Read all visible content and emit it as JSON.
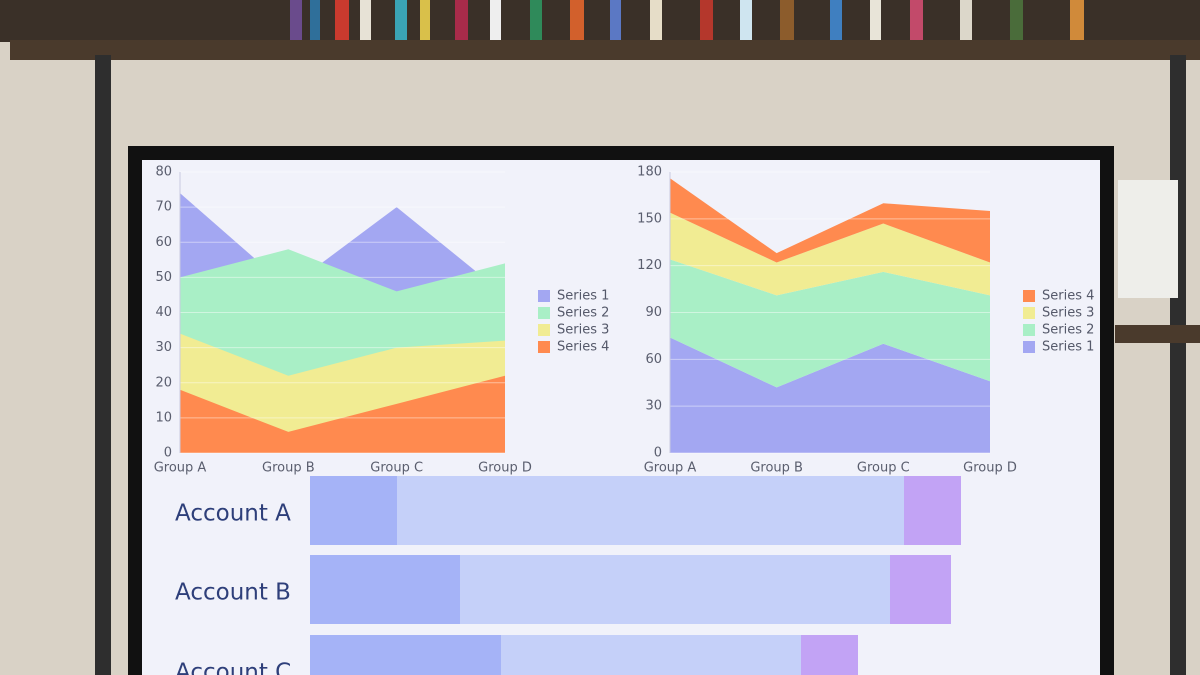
{
  "chart_data": [
    {
      "type": "area",
      "stacked": false,
      "categories": [
        "Group A",
        "Group B",
        "Group C",
        "Group D"
      ],
      "ylim": [
        0,
        80
      ],
      "yticks": [
        0,
        10,
        20,
        30,
        40,
        50,
        60,
        70,
        80
      ],
      "grid": true,
      "legend": "right",
      "series": [
        {
          "name": "Series 1",
          "color": "#a3a7f2",
          "values": [
            74,
            47,
            70,
            45
          ]
        },
        {
          "name": "Series 2",
          "color": "#a9efc6",
          "values": [
            50,
            58,
            46,
            54
          ]
        },
        {
          "name": "Series 3",
          "color": "#f1ec93",
          "values": [
            34,
            22,
            30,
            32
          ]
        },
        {
          "name": "Series 4",
          "color": "#ff8a4f",
          "values": [
            18,
            6,
            14,
            22
          ]
        }
      ]
    },
    {
      "type": "area",
      "stacked": true,
      "categories": [
        "Group A",
        "Group B",
        "Group C",
        "Group D"
      ],
      "ylim": [
        0,
        180
      ],
      "yticks": [
        0,
        30,
        60,
        90,
        120,
        150,
        180
      ],
      "grid": true,
      "legend": "right",
      "series": [
        {
          "name": "Series 1",
          "color": "#a3a7f2",
          "values": [
            74,
            42,
            70,
            46
          ]
        },
        {
          "name": "Series 2",
          "color": "#a9efc6",
          "values": [
            50,
            59,
            46,
            55
          ]
        },
        {
          "name": "Series 3",
          "color": "#f1ec93",
          "values": [
            30,
            21,
            31,
            21
          ]
        },
        {
          "name": "Series 4",
          "color": "#ff8a4f",
          "values": [
            22,
            6,
            13,
            33
          ]
        }
      ]
    },
    {
      "type": "hbar",
      "stacked": true,
      "categories": [
        "Account A",
        "Account B",
        "Account C"
      ],
      "series": [
        {
          "color": "#a5b3f7",
          "values": [
            8.7,
            15,
            19.1
          ]
        },
        {
          "color": "#c5d0f9",
          "values": [
            50.7,
            43,
            30
          ]
        },
        {
          "color": "#c2a3f5",
          "values": [
            5.7,
            6.1,
            5.7
          ]
        }
      ]
    }
  ]
}
